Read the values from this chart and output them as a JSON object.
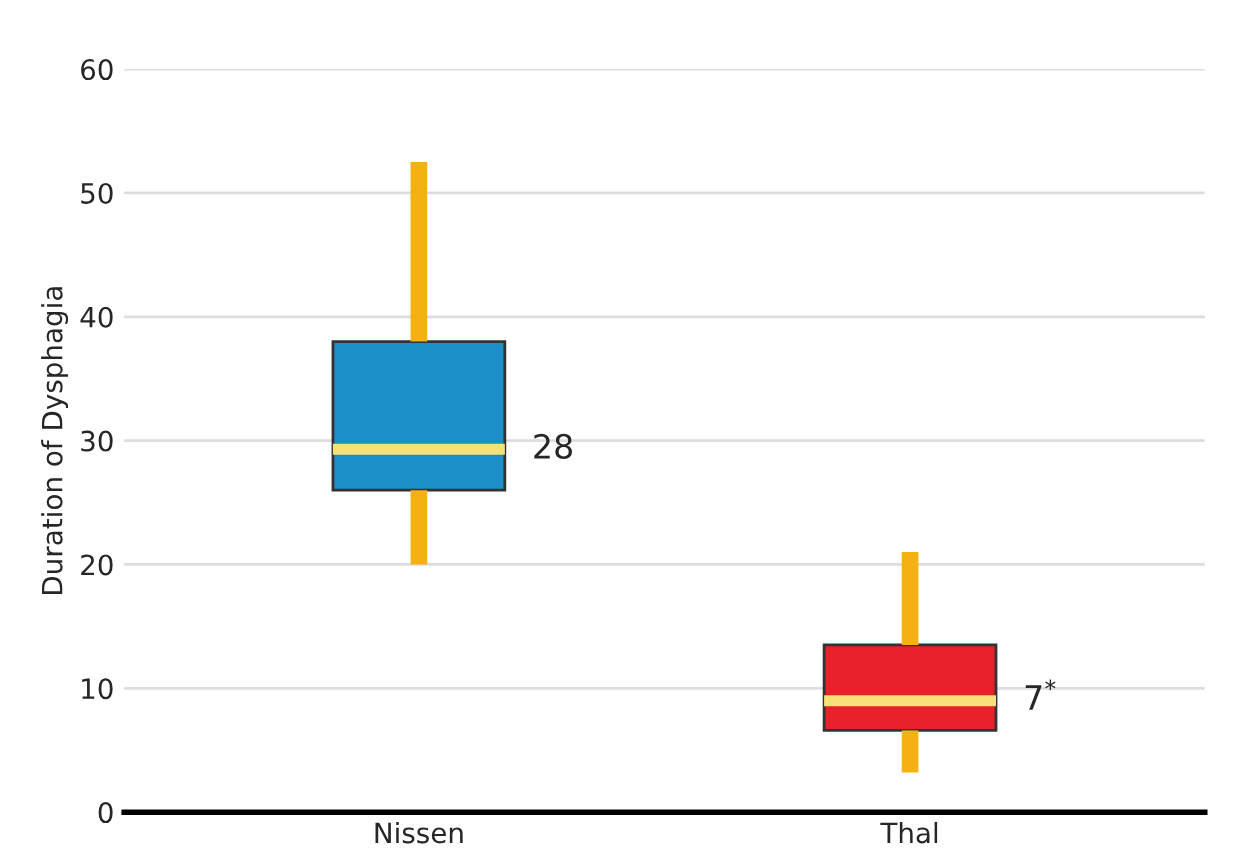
{
  "chart_data": {
    "type": "box",
    "ylabel": "Duration of Dysphagia",
    "categories": [
      "Nissen",
      "Thal"
    ],
    "boxes": [
      {
        "low": 20,
        "q1": 26,
        "median": 29.3,
        "q3": 38,
        "high": 52.5
      },
      {
        "low": 3.2,
        "q1": 6.6,
        "median": 9,
        "q3": 13.5,
        "high": 21
      }
    ],
    "colors": [
      "#1a8fc8",
      "#e8202a"
    ],
    "ylim": [
      0,
      60
    ],
    "yticks": [
      0,
      10,
      20,
      30,
      40,
      50,
      60
    ],
    "grid": "y",
    "annotations": [
      "28",
      "7$^{*}$"
    ]
  }
}
